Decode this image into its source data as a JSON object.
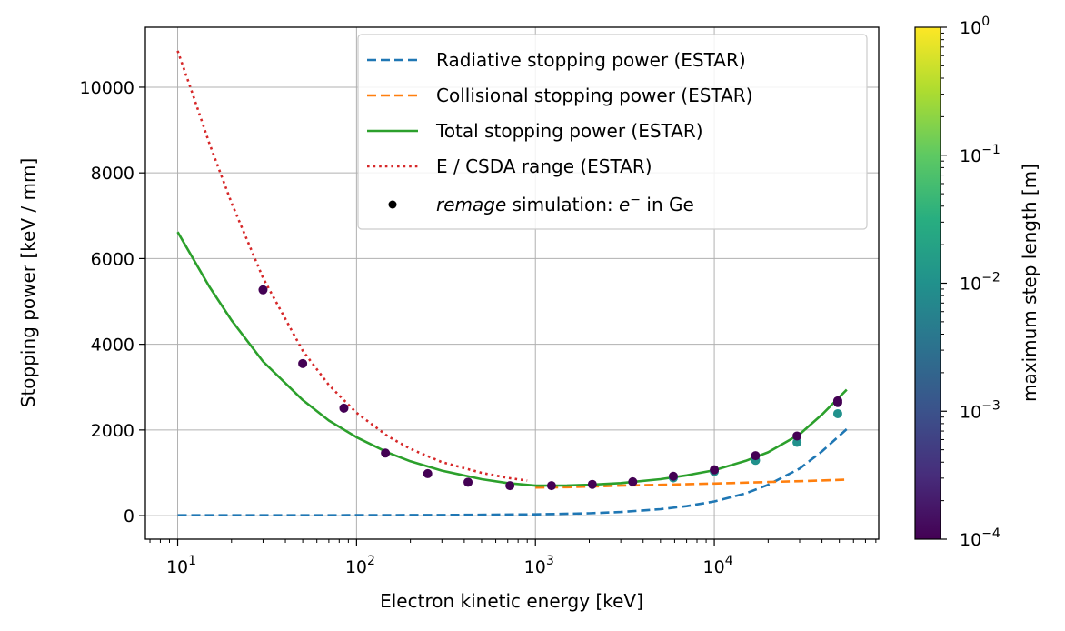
{
  "chart_data": {
    "type": "line",
    "xscale": "log",
    "xlabel": "Electron kinetic energy [keV]",
    "ylabel": "Stopping power [keV / mm]",
    "xlim": [
      6.6,
      83000
    ],
    "ylim": [
      -550,
      11400
    ],
    "x_ticks": [
      {
        "value": 10,
        "base": "10",
        "exp": "1"
      },
      {
        "value": 100,
        "base": "10",
        "exp": "2"
      },
      {
        "value": 1000,
        "base": "10",
        "exp": "3"
      },
      {
        "value": 10000,
        "base": "10",
        "exp": "4"
      }
    ],
    "y_ticks": [
      0,
      2000,
      4000,
      6000,
      8000,
      10000
    ],
    "grid": true,
    "legend_position": "top-right",
    "series": [
      {
        "name": "Radiative stopping power (ESTAR)",
        "style": "dashed",
        "color": "#1f77b4",
        "x": [
          10,
          30,
          100,
          300,
          1000,
          2000,
          3000,
          5000,
          7000,
          10000,
          15000,
          20000,
          30000,
          40000,
          55000
        ],
        "y": [
          8,
          9,
          11,
          15,
          30,
          55,
          85,
          150,
          220,
          330,
          520,
          720,
          1100,
          1500,
          2020
        ]
      },
      {
        "name": "Collisional stopping power (ESTAR)",
        "style": "dashed",
        "color": "#ff7f0e",
        "x": [
          1000,
          1500,
          2000,
          3000,
          5000,
          10000,
          20000,
          30000,
          55000
        ],
        "y": [
          655,
          665,
          680,
          700,
          720,
          750,
          785,
          805,
          840
        ]
      },
      {
        "name": "Total stopping power (ESTAR)",
        "style": "solid",
        "color": "#2ca02c",
        "x": [
          10,
          15,
          20,
          30,
          50,
          70,
          100,
          150,
          200,
          300,
          500,
          700,
          1000,
          1500,
          2000,
          3000,
          5000,
          7000,
          10000,
          15000,
          20000,
          30000,
          40000,
          55000
        ],
        "y": [
          6620,
          5350,
          4560,
          3600,
          2700,
          2220,
          1830,
          1470,
          1270,
          1050,
          850,
          760,
          700,
          705,
          720,
          760,
          850,
          940,
          1060,
          1280,
          1480,
          1900,
          2360,
          2940
        ]
      },
      {
        "name": "E / CSDA range (ESTAR)",
        "style": "dotted",
        "color": "#d62728",
        "x": [
          10,
          12,
          15,
          20,
          30,
          50,
          70,
          100,
          150,
          200,
          300,
          500,
          700,
          900
        ],
        "y": [
          10850,
          9900,
          8700,
          7300,
          5550,
          3850,
          3050,
          2400,
          1850,
          1560,
          1250,
          1000,
          880,
          820
        ]
      }
    ],
    "scatter": {
      "name_prefix": "remage",
      "name_suffix": " simulation: ",
      "name_math": "e",
      "name_tail": " in Ge",
      "colorbar_label": "maximum step length [m]",
      "colorbar_range": [
        0.0001,
        1
      ],
      "colorbar_ticks": [
        {
          "value": 0.0001,
          "base": "10",
          "exp": "−4"
        },
        {
          "value": 0.001,
          "base": "10",
          "exp": "−3"
        },
        {
          "value": 0.01,
          "base": "10",
          "exp": "−2"
        },
        {
          "value": 0.1,
          "base": "10",
          "exp": "−1"
        },
        {
          "value": 1,
          "base": "10",
          "exp": "0"
        }
      ],
      "points": [
        {
          "x": 30,
          "y": 5270,
          "c": 0.0001
        },
        {
          "x": 50,
          "y": 3550,
          "c": 0.0001
        },
        {
          "x": 85,
          "y": 2510,
          "c": 0.0001
        },
        {
          "x": 145,
          "y": 1460,
          "c": 0.0001
        },
        {
          "x": 250,
          "y": 980,
          "c": 0.0001
        },
        {
          "x": 420,
          "y": 780,
          "c": 0.0001
        },
        {
          "x": 720,
          "y": 700,
          "c": 0.0001
        },
        {
          "x": 1230,
          "y": 700,
          "c": 0.0001
        },
        {
          "x": 2080,
          "y": 730,
          "c": 0.0001
        },
        {
          "x": 3500,
          "y": 790,
          "c": 0.0001
        },
        {
          "x": 5900,
          "y": 880,
          "c": 0.01
        },
        {
          "x": 5900,
          "y": 920,
          "c": 0.0001
        },
        {
          "x": 10000,
          "y": 1030,
          "c": 0.01
        },
        {
          "x": 10000,
          "y": 1070,
          "c": 0.0001
        },
        {
          "x": 17000,
          "y": 1290,
          "c": 0.01
        },
        {
          "x": 17000,
          "y": 1400,
          "c": 0.0001
        },
        {
          "x": 29000,
          "y": 1710,
          "c": 0.01
        },
        {
          "x": 29000,
          "y": 1860,
          "c": 0.0001
        },
        {
          "x": 49000,
          "y": 2380,
          "c": 0.01
        },
        {
          "x": 49000,
          "y": 2640,
          "c": 0.0001
        },
        {
          "x": 49000,
          "y": 2680,
          "c": 0.0001
        }
      ]
    }
  }
}
